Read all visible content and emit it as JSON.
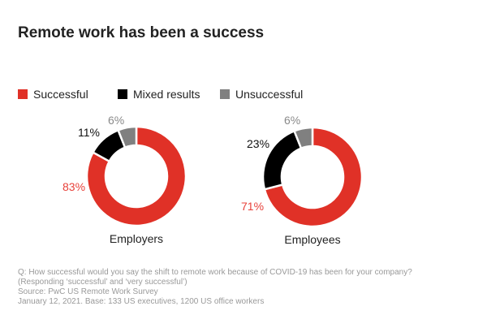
{
  "chart_data": [
    {
      "type": "pie",
      "title": "Remote work has been a success",
      "subtitle": "Employers",
      "categories": [
        "Successful",
        "Mixed results",
        "Unsuccessful"
      ],
      "values": [
        83,
        11,
        6
      ],
      "labels": [
        "83%",
        "11%",
        "6%"
      ],
      "colors": [
        "#e03127",
        "#000000",
        "#808080"
      ],
      "donut": true,
      "legend": "top-left"
    },
    {
      "type": "pie",
      "subtitle": "Employees",
      "categories": [
        "Successful",
        "Mixed results",
        "Unsuccessful"
      ],
      "values": [
        71,
        23,
        6
      ],
      "labels": [
        "71%",
        "23%",
        "6%"
      ],
      "colors": [
        "#e03127",
        "#000000",
        "#808080"
      ],
      "donut": true
    }
  ],
  "title": "Remote work has been a success",
  "legend": [
    {
      "label": "Successful",
      "color": "#e03127"
    },
    {
      "label": "Mixed results",
      "color": "#000000"
    },
    {
      "label": "Unsuccessful",
      "color": "#808080"
    }
  ],
  "label_colors": [
    "#e8413a",
    "#111111",
    "#8a8a8a"
  ],
  "notes": [
    "Q: How successful would you say the shift to remote work because of COVID-19 has been for your company?",
    "(Responding ‘successful’ and ‘very successful’)",
    "Source: PwC US Remote Work Survey",
    "January 12, 2021. Base: 133 US executives, 1200 US office workers"
  ]
}
